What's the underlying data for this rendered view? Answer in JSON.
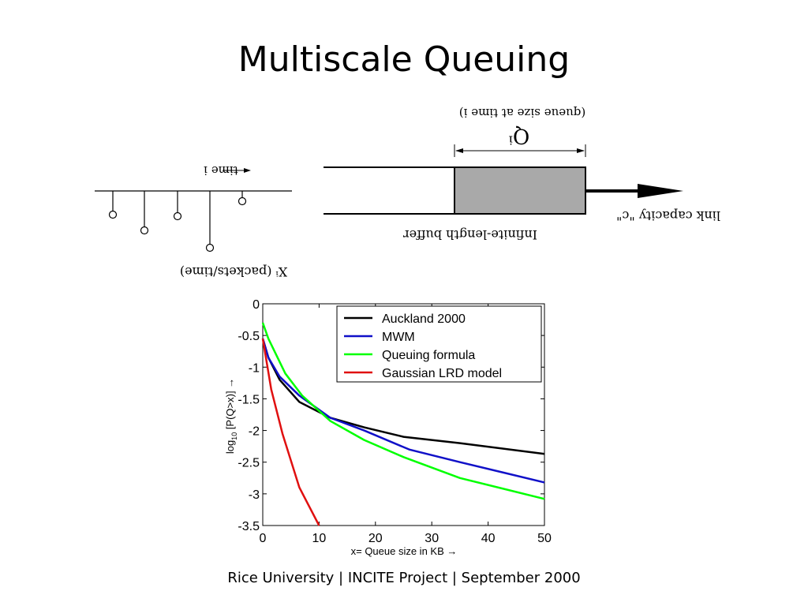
{
  "slide": {
    "title": "Multiscale Queuing",
    "footer": "Rice University | INCITE Project | September 2000"
  },
  "diagram": {
    "time_label": "time  i",
    "x_label": "Xⁱ (packets/time)",
    "queue_symbol": "Qⁱ",
    "queue_label": "(queue size at time  i)",
    "buffer_label": "Infinite-length buffer",
    "link_label": "link capacity \"c\""
  },
  "chart_data": {
    "type": "line",
    "xlabel": "x= Queue size in KB →",
    "ylabel_main": "log",
    "ylabel_sub": "10",
    "ylabel_rest": " [P(Q>x)] →",
    "xlim": [
      0,
      50
    ],
    "ylim": [
      -3.5,
      0
    ],
    "x_ticks": [
      "0",
      "10",
      "20",
      "30",
      "40",
      "50"
    ],
    "y_ticks": [
      "0",
      "-0.5",
      "-1",
      "-1.5",
      "-2",
      "-2.5",
      "-3",
      "-3.5"
    ],
    "x_tick_values": [
      0,
      10,
      20,
      30,
      40,
      50
    ],
    "y_tick_values": [
      0,
      -0.5,
      -1,
      -1.5,
      -2,
      -2.5,
      -3,
      -3.5
    ],
    "legend_position": "top-right",
    "series": [
      {
        "name": "Auckland 2000",
        "color": "#000000",
        "x": [
          0,
          1,
          3,
          6.5,
          12,
          18,
          25,
          35,
          50
        ],
        "y": [
          -0.55,
          -0.85,
          -1.2,
          -1.55,
          -1.8,
          -1.95,
          -2.1,
          -2.2,
          -2.37
        ]
      },
      {
        "name": "MWM",
        "color": "#1010c8",
        "x": [
          0,
          1,
          3,
          6.5,
          12,
          18,
          26,
          35,
          50
        ],
        "y": [
          -0.55,
          -0.85,
          -1.15,
          -1.45,
          -1.8,
          -2.0,
          -2.3,
          -2.5,
          -2.82
        ]
      },
      {
        "name": "Queuing formula",
        "color": "#00ff00",
        "x": [
          0,
          1,
          4,
          7,
          12,
          18,
          25,
          35,
          50
        ],
        "y": [
          -0.3,
          -0.55,
          -1.1,
          -1.45,
          -1.85,
          -2.15,
          -2.42,
          -2.75,
          -3.08
        ]
      },
      {
        "name": "Gaussian LRD model",
        "color": "#e01010",
        "x": [
          0,
          1.5,
          3.5,
          6.5,
          10
        ],
        "y": [
          -0.55,
          -1.35,
          -2.05,
          -2.9,
          -3.5
        ]
      }
    ]
  }
}
